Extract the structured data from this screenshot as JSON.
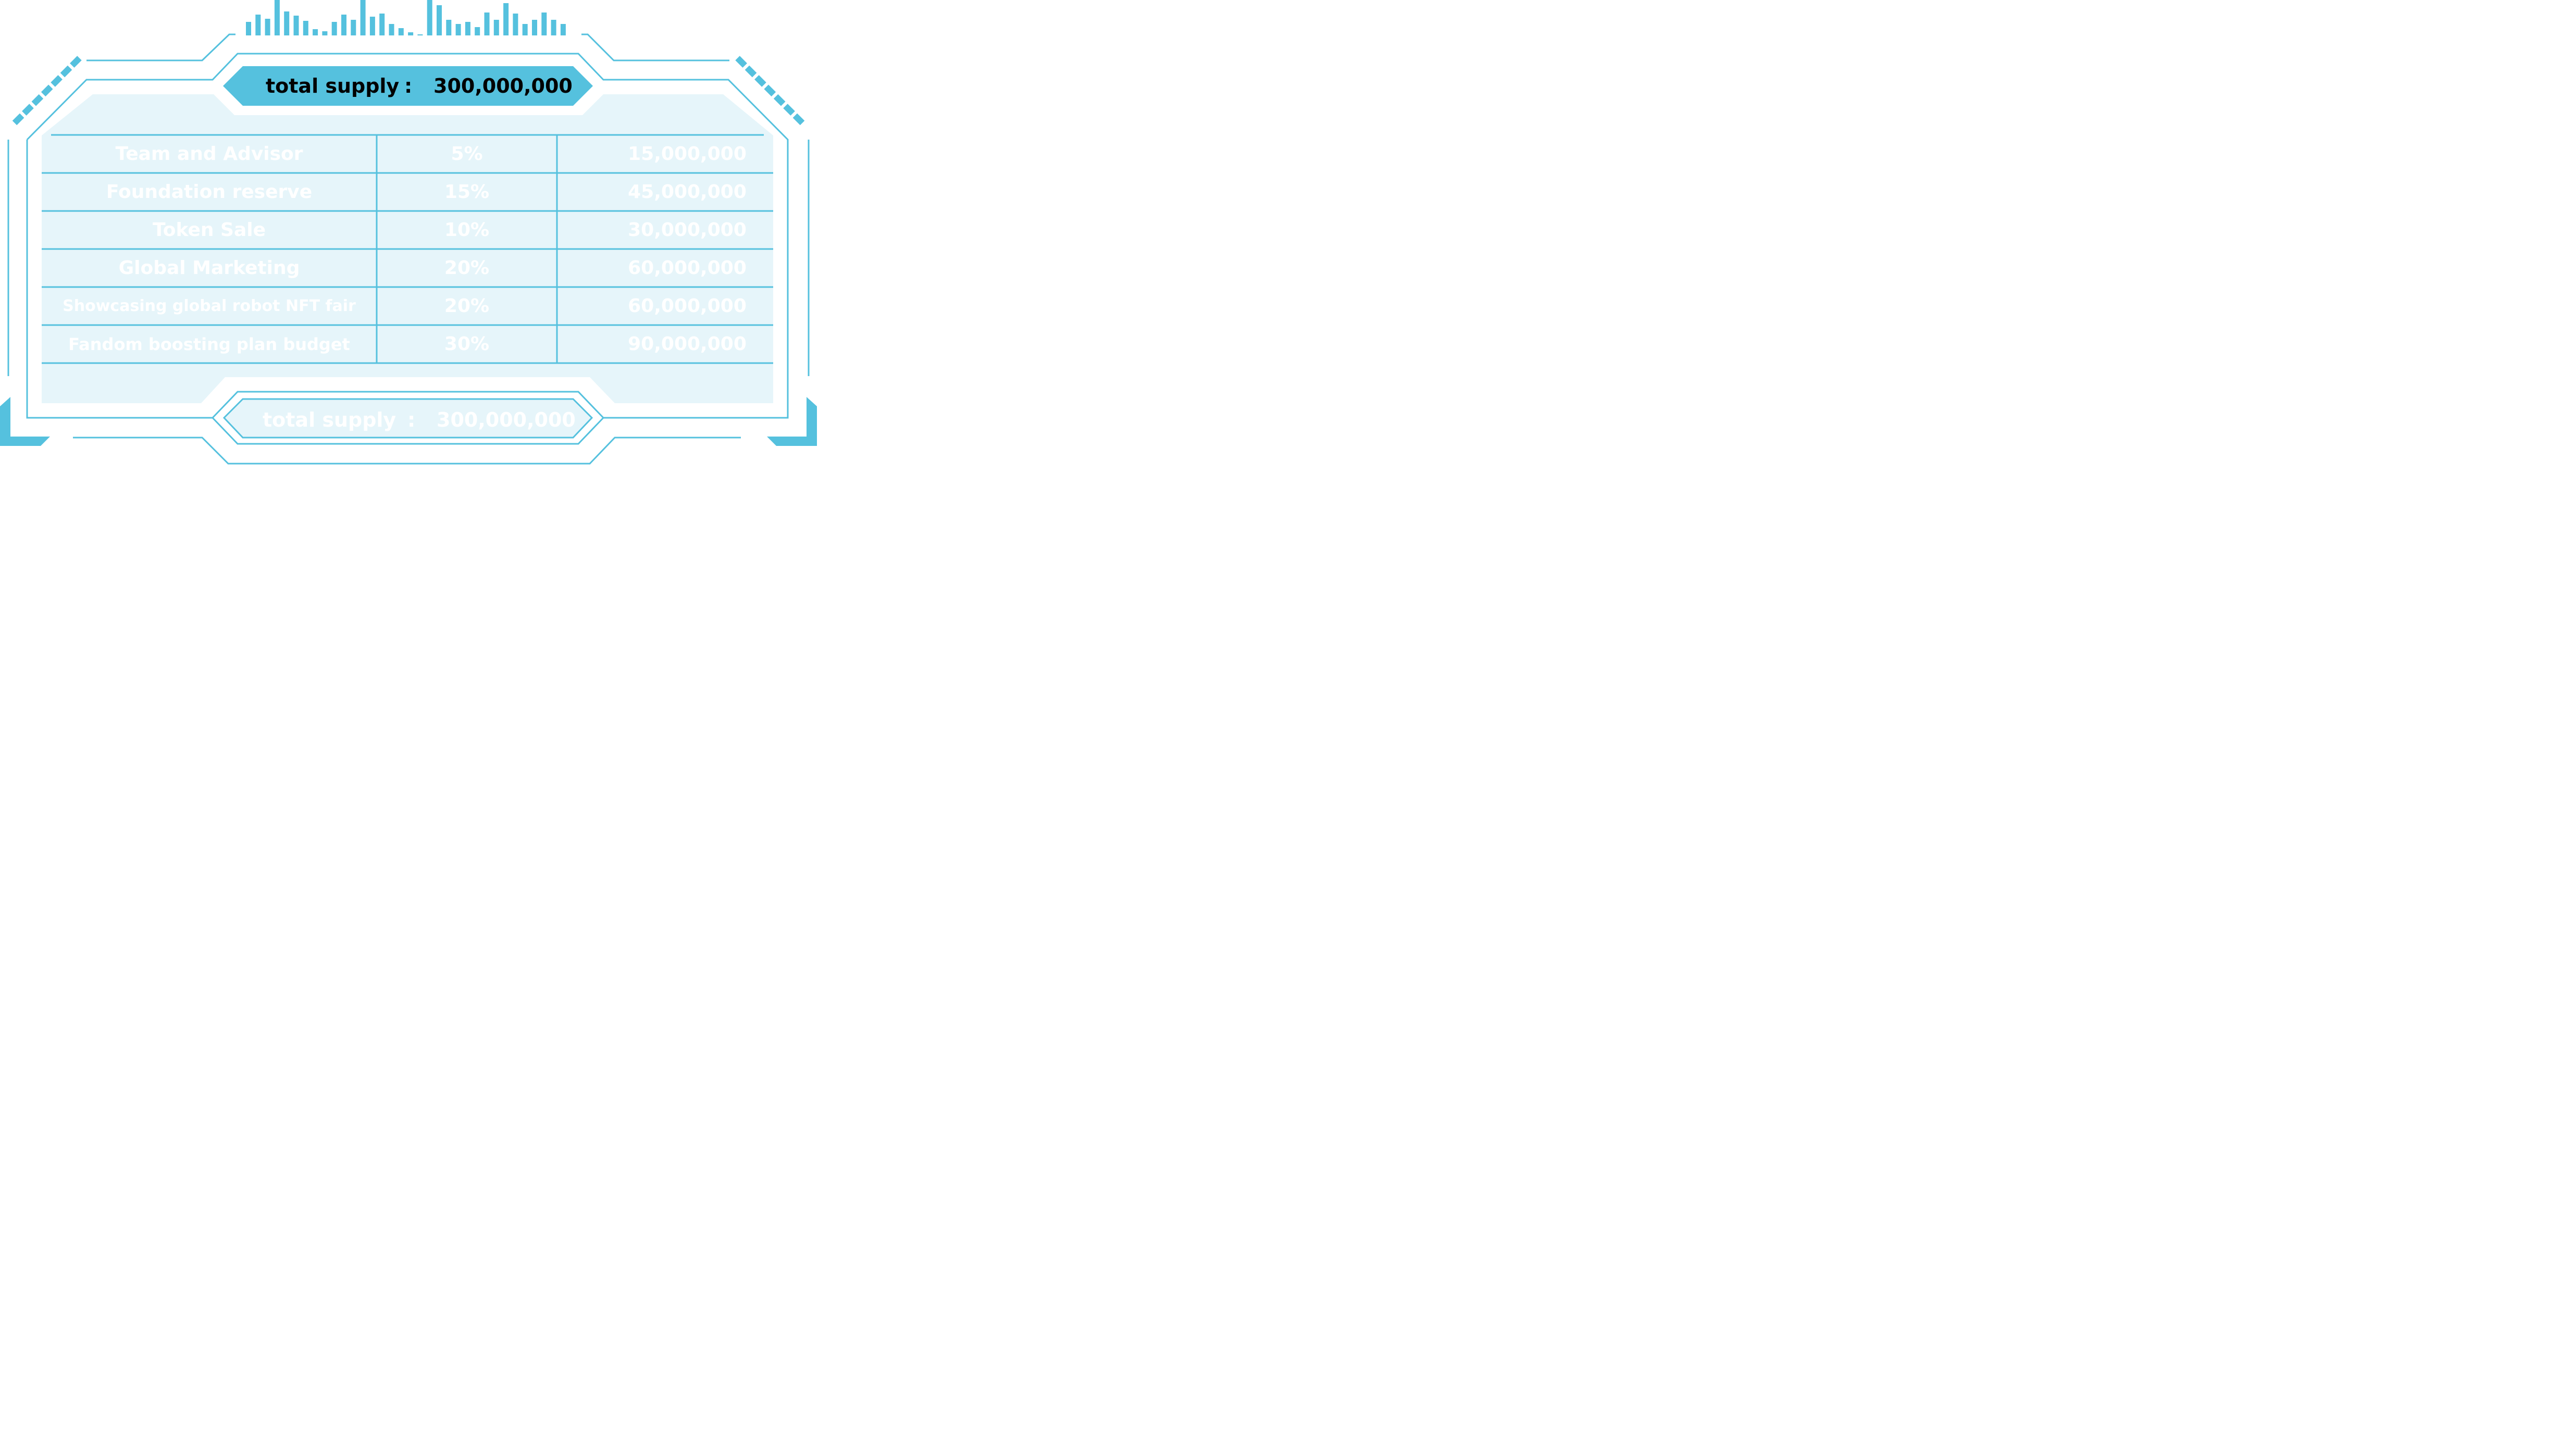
{
  "header": {
    "label": "total supply",
    "separator": ":",
    "value": "300,000,000"
  },
  "rows": [
    {
      "name": "Team and Advisor",
      "percent": "5%",
      "amount": "15,000,000"
    },
    {
      "name": "Foundation reserve",
      "percent": "15%",
      "amount": "45,000,000"
    },
    {
      "name": "Token Sale",
      "percent": "10%",
      "amount": "30,000,000"
    },
    {
      "name": "Global Marketing",
      "percent": "20%",
      "amount": "60,000,000"
    },
    {
      "name": "Showcasing global robot NFT fair",
      "percent": "20%",
      "amount": "60,000,000"
    },
    {
      "name": "Fandom boosting plan budget",
      "percent": "30%",
      "amount": "90,000,000"
    }
  ],
  "footer": {
    "label": "total supply",
    "separator": ":",
    "value": "300,000,000"
  },
  "colors": {
    "accent": "#55c1de",
    "panel": "#e6f5fa",
    "text_light": "#ffffff",
    "text_dark": "#000000"
  }
}
